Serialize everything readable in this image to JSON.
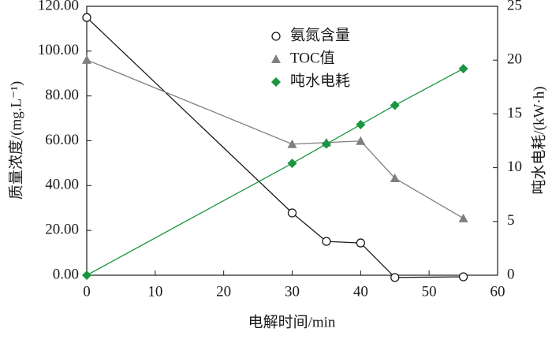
{
  "chart_data": {
    "type": "line",
    "xlabel": "电解时间/min",
    "ylabel": "质量浓度/(mg.L⁻¹)",
    "y2label": "吨水电耗/(kW·h)",
    "x": [
      0,
      30,
      35,
      40,
      45,
      55
    ],
    "xlim": [
      0,
      60
    ],
    "xticks": [
      0,
      10,
      20,
      30,
      40,
      50,
      60
    ],
    "ylim": [
      0,
      120
    ],
    "yticks": [
      {
        "value": 0,
        "label": "0.00"
      },
      {
        "value": 20,
        "label": "20.00"
      },
      {
        "value": 40,
        "label": "40.00"
      },
      {
        "value": 60,
        "label": "60.00"
      },
      {
        "value": 80,
        "label": "80.00"
      },
      {
        "value": 100,
        "label": "100.00"
      },
      {
        "value": 120,
        "label": "120.00"
      }
    ],
    "y2lim": [
      0,
      25
    ],
    "y2ticks": [
      0,
      5,
      10,
      15,
      20,
      25
    ],
    "series": [
      {
        "name": "氨氮含量",
        "color": "#1a1a1a",
        "marker": "circle",
        "values": [
          115,
          27.8,
          15.1,
          14.4,
          -1,
          -0.7
        ]
      },
      {
        "name": "TOC值",
        "color": "#7f7f7f",
        "marker": "triangle",
        "values": [
          96.1,
          58.5,
          59.2,
          59.9,
          43.3,
          25.4
        ]
      },
      {
        "name": "吨水电耗",
        "color": "#1a9641",
        "marker": "diamond",
        "axis": "y2",
        "values": [
          0,
          10.4,
          12.2,
          14.0,
          15.8,
          19.2
        ]
      }
    ]
  }
}
